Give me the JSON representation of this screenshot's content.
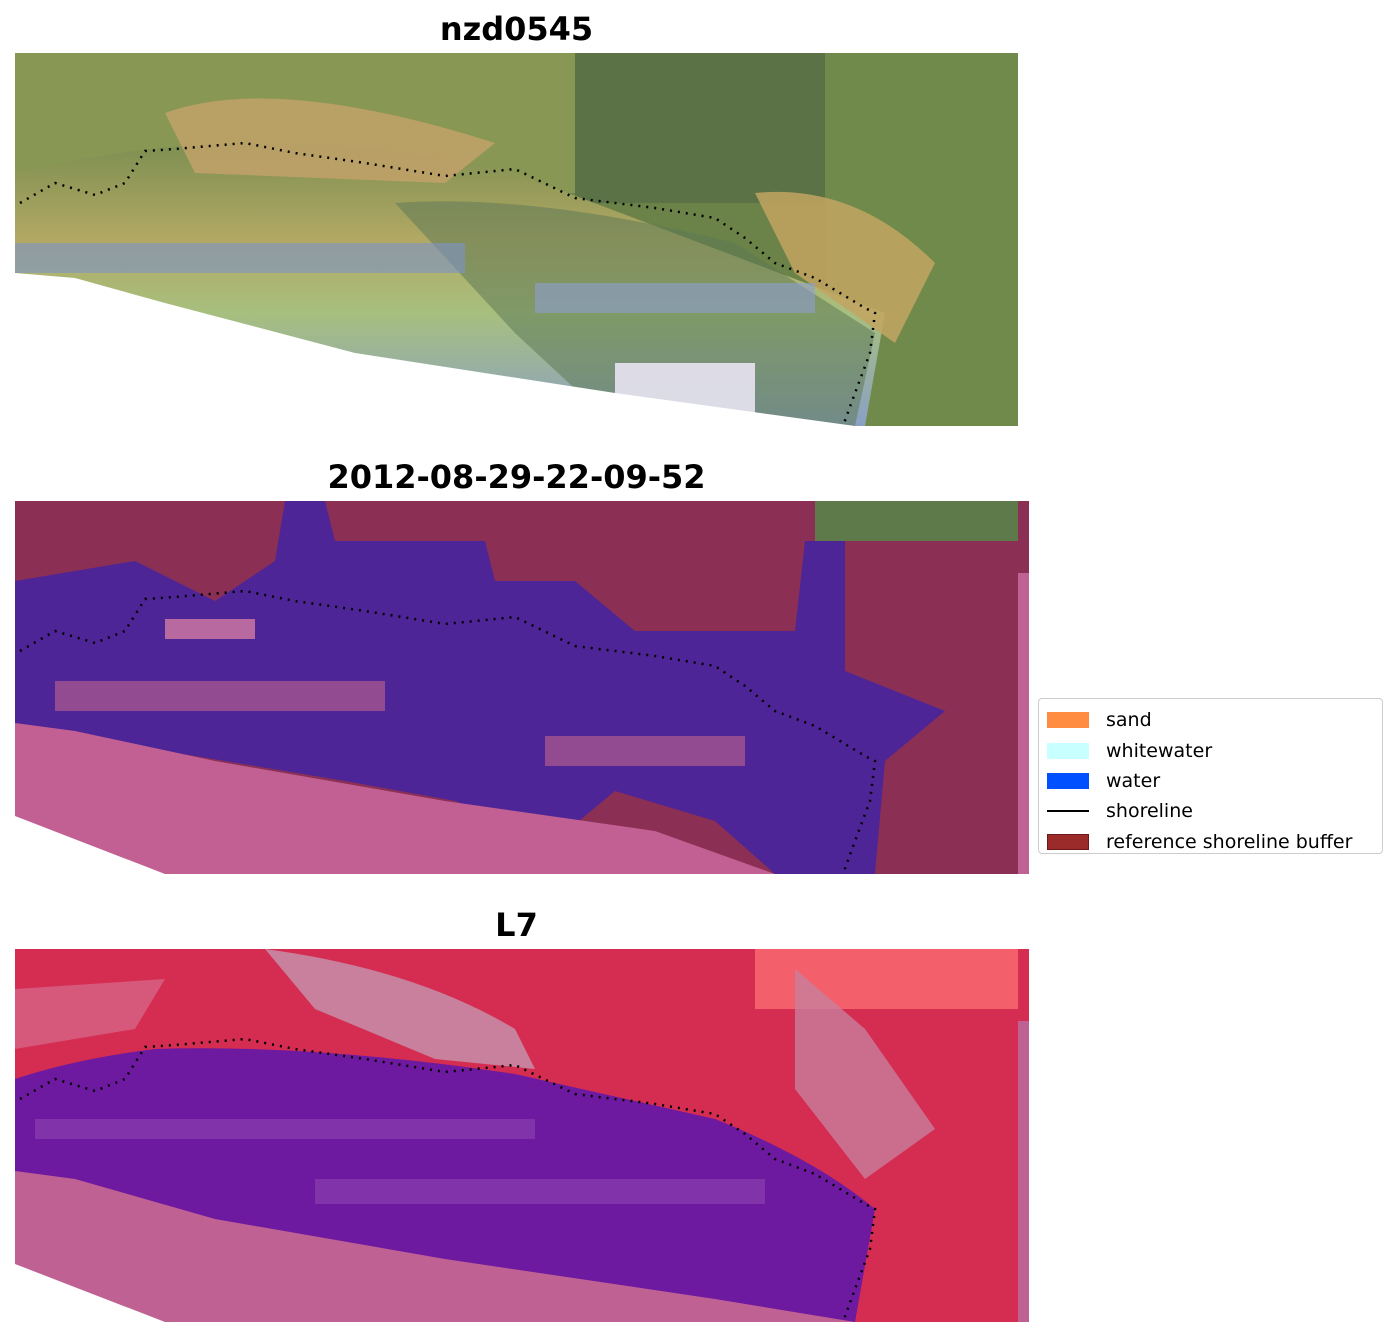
{
  "panels": [
    {
      "title": "nzd0545",
      "type": "rgb"
    },
    {
      "title": "2012-08-29-22-09-52",
      "type": "classified"
    },
    {
      "title": "L7",
      "type": "index"
    }
  ],
  "legend": {
    "items": [
      {
        "label": "sand",
        "color": "#ff8c40",
        "kind": "patch"
      },
      {
        "label": "whitewater",
        "color": "#c8ffff",
        "kind": "patch"
      },
      {
        "label": "water",
        "color": "#0050ff",
        "kind": "patch"
      },
      {
        "label": "shoreline",
        "color": "#000000",
        "kind": "line"
      },
      {
        "label": "reference shoreline buffer",
        "color": "#9b2a2a",
        "kind": "patch"
      }
    ]
  },
  "colors": {
    "vegetation_dark": "#5f7a4a",
    "vegetation_light": "#a6ac55",
    "beach_tan": "#c4a56a",
    "water_blue": "#7f93c0",
    "classified_water": "#4e2596",
    "classified_buffer": "#8c2f55",
    "classified_sea": "#c26094",
    "index_red": "#d52c52",
    "index_pink": "#c8809c",
    "index_purple": "#6d1aa0",
    "nodata_pink": "#c06194"
  }
}
